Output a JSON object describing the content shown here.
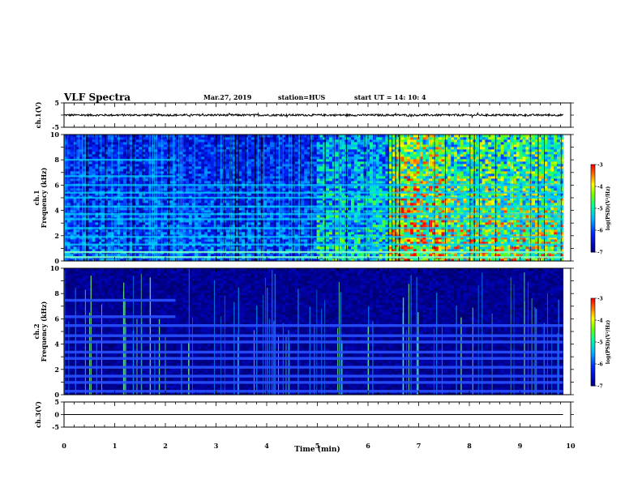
{
  "header": {
    "title": "VLF Spectra",
    "date": "Mar.27, 2019",
    "station": "station=HUS",
    "start": "start  UT =   14: 10: 4"
  },
  "colors": {
    "background": "#000000",
    "spectrogram_dark": "#000033",
    "spectrogram_blue": "#0000ff",
    "spectrogram_cyan": "#00c8ff",
    "spectrogram_green": "#00ff80"
  },
  "chart_data": [
    {
      "type": "line",
      "name": "ch1-waveform",
      "ylabel": "ch.1(V)",
      "ylim": [
        -5,
        5
      ],
      "yticks": [
        "5",
        "-5"
      ],
      "xlim": [
        0,
        10
      ],
      "description_values": {
        "baseline": 0.0,
        "amplitude": 0.4
      }
    },
    {
      "type": "heatmap",
      "name": "ch1-spectrogram",
      "ylabel_line1": "ch.1",
      "ylabel_line2": "Frequency (kHz)",
      "ylim": [
        0,
        10
      ],
      "yticks": [
        "0",
        "2",
        "4",
        "6",
        "8",
        "10"
      ],
      "xlim": [
        0,
        10
      ],
      "data_xlim": [
        0,
        9.85
      ],
      "colorbar": {
        "label": "log(PSD)(V²/Hz)",
        "ticks": [
          "-3",
          "-4",
          "-5",
          "-6",
          "-7"
        ],
        "range": [
          -7,
          -3
        ]
      },
      "bands_khz": [
        0.3,
        0.7,
        1.3,
        1.9,
        2.6,
        3.3,
        3.7,
        4.3,
        5.0,
        5.4,
        6.0,
        6.7,
        8.0
      ],
      "active_period_min": [
        5.0,
        9.85
      ]
    },
    {
      "type": "heatmap",
      "name": "ch2-spectrogram",
      "ylabel_line1": "ch.2",
      "ylabel_line2": "Frequency (kHz)",
      "ylim": [
        0,
        10
      ],
      "yticks": [
        "0",
        "2",
        "4",
        "6",
        "8",
        "10"
      ],
      "xlim": [
        0,
        10
      ],
      "data_xlim": [
        0,
        9.85
      ],
      "colorbar": {
        "label": "log(PSD)(V²/Hz)",
        "ticks": [
          "-3",
          "-4",
          "-5",
          "-6",
          "-7"
        ],
        "range": [
          -7,
          -3
        ]
      },
      "bands_khz": [
        0.3,
        1.0,
        1.5,
        2.2,
        2.9,
        3.4,
        4.2,
        4.7,
        5.5,
        6.2,
        7.5
      ],
      "transition_min": 2.2
    },
    {
      "type": "line",
      "name": "ch3-waveform",
      "ylabel": "ch.3(V)",
      "ylim": [
        -5,
        5
      ],
      "yticks": [
        "5",
        "0",
        "-5"
      ],
      "xlim": [
        0,
        10
      ],
      "xlabel": "Time (min)",
      "xticks": [
        "0",
        "1",
        "2",
        "3",
        "4",
        "5",
        "6",
        "7",
        "8",
        "9",
        "10"
      ],
      "description_values": {
        "baseline": 0.0,
        "amplitude": 0.0
      }
    }
  ]
}
